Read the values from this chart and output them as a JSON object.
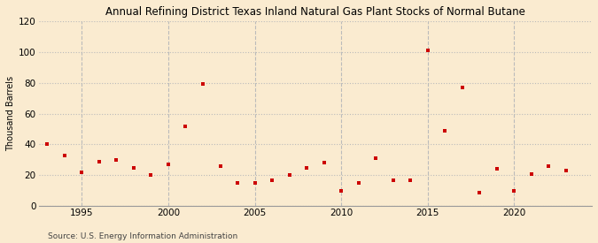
{
  "title": "Annual Refining District Texas Inland Natural Gas Plant Stocks of Normal Butane",
  "ylabel": "Thousand Barrels",
  "source": "Source: U.S. Energy Information Administration",
  "background_color": "#faebd0",
  "plot_background_color": "#faebd0",
  "marker_color": "#cc0000",
  "marker": "s",
  "marker_size": 3.5,
  "ylim": [
    0,
    120
  ],
  "yticks": [
    0,
    20,
    40,
    60,
    80,
    100,
    120
  ],
  "xlim": [
    1992.5,
    2024.5
  ],
  "xticks": [
    1995,
    2000,
    2005,
    2010,
    2015,
    2020
  ],
  "grid_color": "#bbbbbb",
  "years": [
    1993,
    1994,
    1995,
    1996,
    1997,
    1998,
    1999,
    2000,
    2001,
    2002,
    2003,
    2004,
    2005,
    2006,
    2007,
    2008,
    2009,
    2010,
    2011,
    2012,
    2013,
    2014,
    2015,
    2016,
    2017,
    2018,
    2019,
    2020,
    2021,
    2022,
    2023
  ],
  "values": [
    40,
    33,
    22,
    29,
    30,
    25,
    20,
    27,
    52,
    79,
    26,
    15,
    15,
    17,
    20,
    25,
    28,
    10,
    15,
    31,
    17,
    17,
    101,
    49,
    77,
    9,
    24,
    10,
    21,
    26,
    23
  ]
}
